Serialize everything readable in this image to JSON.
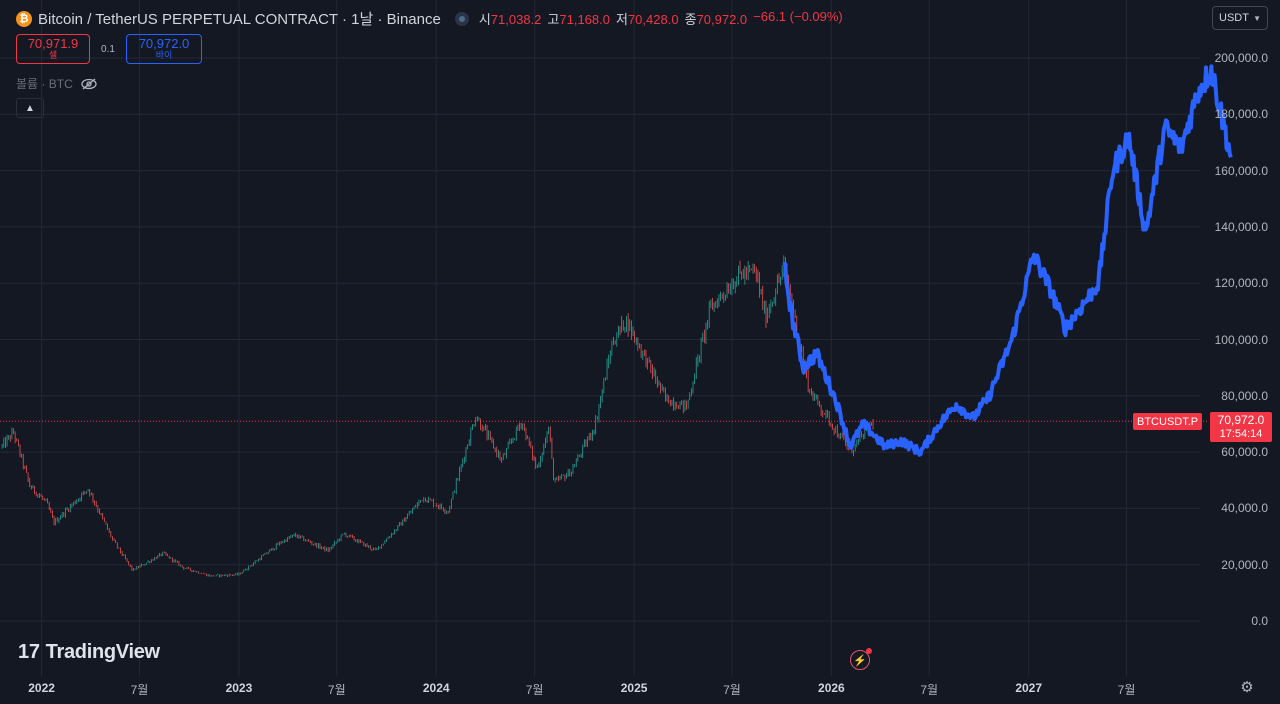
{
  "header": {
    "coin_icon": "bitcoin-icon",
    "title": "Bitcoin / TetherUS PERPETUAL CONTRACT · 1날 · Binance",
    "ohlc": {
      "open_label": "시",
      "open": "71,038.2",
      "high_label": "고",
      "high": "71,168.0",
      "low_label": "저",
      "low": "70,428.0",
      "close_label": "종",
      "close": "70,972.0",
      "change": "−66.1 (−0.09%)"
    }
  },
  "trade": {
    "sell_price": "70,971.9",
    "sell_label": "셀",
    "spread": "0.1",
    "buy_price": "70,972.0",
    "buy_label": "바이"
  },
  "volume": {
    "label": "볼륨 · BTC"
  },
  "currency": {
    "selected": "USDT"
  },
  "price_tag": {
    "symbol": "BTCUSDT.P",
    "price": "70,972.0",
    "countdown": "17:54:14"
  },
  "logo": {
    "text": "TradingView"
  },
  "colors": {
    "background": "#141823",
    "up": "#26a69a",
    "down": "#ef5350",
    "projection": "#2962ff",
    "current_price": "#f23645"
  },
  "chart_data": {
    "type": "line",
    "y_ticks": [
      "0.0",
      "20,000.0",
      "40,000.0",
      "60,000.0",
      "80,000.0",
      "100,000.0",
      "120,000.0",
      "140,000.0",
      "160,000.0",
      "180,000.0",
      "200,000.0"
    ],
    "x_ticks": [
      {
        "label": "2022",
        "kind": "year",
        "date": "2022-01-01"
      },
      {
        "label": "7월",
        "kind": "month",
        "date": "2022-07-01"
      },
      {
        "label": "2023",
        "kind": "year",
        "date": "2023-01-01"
      },
      {
        "label": "7월",
        "kind": "month",
        "date": "2023-07-01"
      },
      {
        "label": "2024",
        "kind": "year",
        "date": "2024-01-01"
      },
      {
        "label": "7월",
        "kind": "month",
        "date": "2024-07-01"
      },
      {
        "label": "2025",
        "kind": "year",
        "date": "2025-01-01"
      },
      {
        "label": "7월",
        "kind": "month",
        "date": "2025-07-01"
      },
      {
        "label": "2026",
        "kind": "year",
        "date": "2026-01-01"
      },
      {
        "label": "7월",
        "kind": "month",
        "date": "2026-07-01"
      },
      {
        "label": "2027",
        "kind": "year",
        "date": "2027-01-01"
      },
      {
        "label": "7월",
        "kind": "month",
        "date": "2027-07-01"
      }
    ],
    "ylim": [
      0,
      200000
    ],
    "xlim": [
      "2021-10-16",
      "2028-03-15"
    ],
    "current_price": 70972,
    "grid": true,
    "series": [
      {
        "role": "price",
        "points": [
          [
            "2021-10-20",
            62000
          ],
          [
            "2021-11-10",
            67000
          ],
          [
            "2021-12-10",
            48000
          ],
          [
            "2022-01-10",
            42000
          ],
          [
            "2022-01-24",
            35000
          ],
          [
            "2022-03-28",
            47000
          ],
          [
            "2022-05-12",
            29000
          ],
          [
            "2022-06-18",
            18000
          ],
          [
            "2022-08-14",
            24000
          ],
          [
            "2022-09-20",
            19000
          ],
          [
            "2022-11-09",
            16000
          ],
          [
            "2022-12-31",
            16500
          ],
          [
            "2023-03-20",
            28000
          ],
          [
            "2023-04-14",
            30500
          ],
          [
            "2023-06-15",
            25000
          ],
          [
            "2023-07-14",
            31000
          ],
          [
            "2023-09-11",
            25000
          ],
          [
            "2023-10-25",
            34000
          ],
          [
            "2023-12-08",
            44000
          ],
          [
            "2024-01-23",
            39000
          ],
          [
            "2024-03-14",
            73000
          ],
          [
            "2024-05-01",
            57000
          ],
          [
            "2024-06-07",
            71000
          ],
          [
            "2024-07-05",
            54000
          ],
          [
            "2024-07-29",
            69000
          ],
          [
            "2024-08-05",
            49000
          ],
          [
            "2024-09-06",
            53000
          ],
          [
            "2024-10-20",
            69000
          ],
          [
            "2024-11-22",
            99000
          ],
          [
            "2024-12-17",
            107000
          ],
          [
            "2025-02-28",
            79000
          ],
          [
            "2025-04-08",
            76000
          ],
          [
            "2025-05-22",
            111000
          ],
          [
            "2025-07-14",
            123000
          ],
          [
            "2025-08-14",
            124000
          ],
          [
            "2025-09-01",
            108000
          ],
          [
            "2025-10-06",
            126000
          ],
          [
            "2025-11-21",
            82000
          ],
          [
            "2026-02-05",
            60000
          ],
          [
            "2026-03-20",
            70972
          ]
        ]
      },
      {
        "role": "projection",
        "points": [
          [
            "2025-10-06",
            126000
          ],
          [
            "2025-10-20",
            108000
          ],
          [
            "2025-11-10",
            90000
          ],
          [
            "2025-12-05",
            95000
          ],
          [
            "2026-01-10",
            78000
          ],
          [
            "2026-02-05",
            62000
          ],
          [
            "2026-03-01",
            70000
          ],
          [
            "2026-04-10",
            62000
          ],
          [
            "2026-05-10",
            64000
          ],
          [
            "2026-06-15",
            60000
          ],
          [
            "2026-07-20",
            70000
          ],
          [
            "2026-08-20",
            77000
          ],
          [
            "2026-09-20",
            72000
          ],
          [
            "2026-10-20",
            80000
          ],
          [
            "2026-11-10",
            90000
          ],
          [
            "2026-12-01",
            100000
          ],
          [
            "2027-01-10",
            130000
          ],
          [
            "2027-02-10",
            118000
          ],
          [
            "2027-03-10",
            104000
          ],
          [
            "2027-04-10",
            112000
          ],
          [
            "2027-05-10",
            120000
          ],
          [
            "2027-06-05",
            160000
          ],
          [
            "2027-07-05",
            172000
          ],
          [
            "2027-08-05",
            138000
          ],
          [
            "2027-09-10",
            175000
          ],
          [
            "2027-10-10",
            168000
          ],
          [
            "2027-11-10",
            188000
          ],
          [
            "2027-12-05",
            196000
          ],
          [
            "2028-01-10",
            165000
          ]
        ]
      }
    ]
  }
}
